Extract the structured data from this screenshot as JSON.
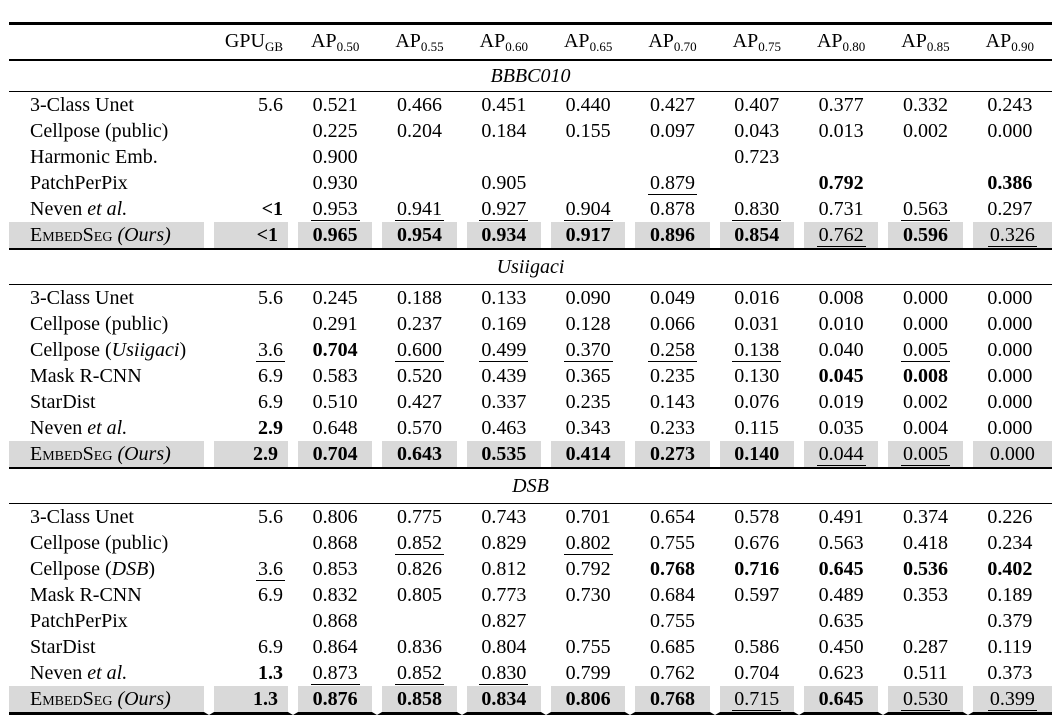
{
  "page": {
    "background_color": "#ffffff",
    "text_color": "#000000",
    "highlight_color": "#d9d9d9"
  },
  "table": {
    "header": {
      "method_label": "",
      "gpu": {
        "base": "GPU",
        "sub": "GB"
      },
      "ap_base": "AP",
      "ap_thresholds": [
        "0.50",
        "0.55",
        "0.60",
        "0.65",
        "0.70",
        "0.75",
        "0.80",
        "0.85",
        "0.90"
      ]
    },
    "sections": [
      {
        "dataset": "BBBC010",
        "rows": [
          {
            "method": [
              {
                "t": "3-Class Unet",
                "s": ""
              }
            ],
            "gpu": "5.6",
            "highlight": false,
            "values": [
              "0.521",
              "0.466",
              "0.451",
              "0.440",
              "0.427",
              "0.407",
              "0.377",
              "0.332",
              "0.243"
            ]
          },
          {
            "method": [
              {
                "t": "Cellpose (public)",
                "s": ""
              }
            ],
            "gpu": "",
            "highlight": false,
            "values": [
              "0.225",
              "0.204",
              "0.184",
              "0.155",
              "0.097",
              "0.043",
              "0.013",
              "0.002",
              "0.000"
            ]
          },
          {
            "method": [
              {
                "t": "Harmonic Emb.",
                "s": ""
              }
            ],
            "gpu": "",
            "highlight": false,
            "values": [
              "0.900",
              "",
              "",
              "",
              "",
              "0.723",
              "",
              "",
              ""
            ]
          },
          {
            "method": [
              {
                "t": "PatchPerPix",
                "s": ""
              }
            ],
            "gpu": "",
            "highlight": false,
            "values": [
              "0.930",
              "",
              "0.905",
              "",
              {
                "t": "0.879",
                "s": "u"
              },
              "",
              {
                "t": "0.792",
                "s": "b"
              },
              "",
              {
                "t": "0.386",
                "s": "b"
              }
            ]
          },
          {
            "method": [
              {
                "t": "Neven ",
                "s": ""
              },
              {
                "t": "et al.",
                "s": "i"
              }
            ],
            "gpu": {
              "t": "<1",
              "s": "b"
            },
            "highlight": false,
            "values": [
              {
                "t": "0.953",
                "s": "u"
              },
              {
                "t": "0.941",
                "s": "u"
              },
              {
                "t": "0.927",
                "s": "u"
              },
              {
                "t": "0.904",
                "s": "u"
              },
              "0.878",
              {
                "t": "0.830",
                "s": "u"
              },
              "0.731",
              {
                "t": "0.563",
                "s": "u"
              },
              "0.297"
            ]
          },
          {
            "method": [
              {
                "t": "EmbedSeg",
                "s": "sc"
              },
              {
                "t": " ",
                "s": ""
              },
              {
                "t": "(Ours)",
                "s": "i"
              }
            ],
            "gpu": {
              "t": "<1",
              "s": "b"
            },
            "highlight": true,
            "values": [
              {
                "t": "0.965",
                "s": "b"
              },
              {
                "t": "0.954",
                "s": "b"
              },
              {
                "t": "0.934",
                "s": "b"
              },
              {
                "t": "0.917",
                "s": "b"
              },
              {
                "t": "0.896",
                "s": "b"
              },
              {
                "t": "0.854",
                "s": "b"
              },
              {
                "t": "0.762",
                "s": "u"
              },
              {
                "t": "0.596",
                "s": "b"
              },
              {
                "t": "0.326",
                "s": "u"
              }
            ]
          }
        ]
      },
      {
        "dataset": "Usiigaci",
        "rows": [
          {
            "method": [
              {
                "t": "3-Class Unet",
                "s": ""
              }
            ],
            "gpu": "5.6",
            "highlight": false,
            "values": [
              "0.245",
              "0.188",
              "0.133",
              "0.090",
              "0.049",
              "0.016",
              "0.008",
              "0.000",
              "0.000"
            ]
          },
          {
            "method": [
              {
                "t": "Cellpose (public)",
                "s": ""
              }
            ],
            "gpu": "",
            "highlight": false,
            "values": [
              "0.291",
              "0.237",
              "0.169",
              "0.128",
              "0.066",
              "0.031",
              "0.010",
              "0.000",
              "0.000"
            ]
          },
          {
            "method": [
              {
                "t": "Cellpose (",
                "s": ""
              },
              {
                "t": "Usiigaci",
                "s": "i"
              },
              {
                "t": ")",
                "s": ""
              }
            ],
            "gpu": {
              "t": "3.6",
              "s": "u"
            },
            "highlight": false,
            "values": [
              {
                "t": "0.704",
                "s": "b"
              },
              {
                "t": "0.600",
                "s": "u"
              },
              {
                "t": "0.499",
                "s": "u"
              },
              {
                "t": "0.370",
                "s": "u"
              },
              {
                "t": "0.258",
                "s": "u"
              },
              {
                "t": "0.138",
                "s": "u"
              },
              "0.040",
              {
                "t": "0.005",
                "s": "u"
              },
              "0.000"
            ]
          },
          {
            "method": [
              {
                "t": "Mask R-CNN",
                "s": ""
              }
            ],
            "gpu": "6.9",
            "highlight": false,
            "values": [
              "0.583",
              "0.520",
              "0.439",
              "0.365",
              "0.235",
              "0.130",
              {
                "t": "0.045",
                "s": "b"
              },
              {
                "t": "0.008",
                "s": "b"
              },
              "0.000"
            ]
          },
          {
            "method": [
              {
                "t": "StarDist",
                "s": ""
              }
            ],
            "gpu": "6.9",
            "highlight": false,
            "values": [
              "0.510",
              "0.427",
              "0.337",
              "0.235",
              "0.143",
              "0.076",
              "0.019",
              "0.002",
              "0.000"
            ]
          },
          {
            "method": [
              {
                "t": "Neven ",
                "s": ""
              },
              {
                "t": "et al.",
                "s": "i"
              }
            ],
            "gpu": {
              "t": "2.9",
              "s": "b"
            },
            "highlight": false,
            "values": [
              "0.648",
              "0.570",
              "0.463",
              "0.343",
              "0.233",
              "0.115",
              "0.035",
              "0.004",
              "0.000"
            ]
          },
          {
            "method": [
              {
                "t": "EmbedSeg",
                "s": "sc"
              },
              {
                "t": " ",
                "s": ""
              },
              {
                "t": "(Ours)",
                "s": "i"
              }
            ],
            "gpu": {
              "t": "2.9",
              "s": "b"
            },
            "highlight": true,
            "values": [
              {
                "t": "0.704",
                "s": "b"
              },
              {
                "t": "0.643",
                "s": "b"
              },
              {
                "t": "0.535",
                "s": "b"
              },
              {
                "t": "0.414",
                "s": "b"
              },
              {
                "t": "0.273",
                "s": "b"
              },
              {
                "t": "0.140",
                "s": "b"
              },
              {
                "t": "0.044",
                "s": "u"
              },
              {
                "t": "0.005",
                "s": "u"
              },
              "0.000"
            ]
          }
        ]
      },
      {
        "dataset": "DSB",
        "rows": [
          {
            "method": [
              {
                "t": "3-Class Unet",
                "s": ""
              }
            ],
            "gpu": "5.6",
            "highlight": false,
            "values": [
              "0.806",
              "0.775",
              "0.743",
              "0.701",
              "0.654",
              "0.578",
              "0.491",
              "0.374",
              "0.226"
            ]
          },
          {
            "method": [
              {
                "t": "Cellpose (public)",
                "s": ""
              }
            ],
            "gpu": "",
            "highlight": false,
            "values": [
              "0.868",
              {
                "t": "0.852",
                "s": "u"
              },
              "0.829",
              {
                "t": "0.802",
                "s": "u"
              },
              "0.755",
              "0.676",
              "0.563",
              "0.418",
              "0.234"
            ]
          },
          {
            "method": [
              {
                "t": "Cellpose (",
                "s": ""
              },
              {
                "t": "DSB",
                "s": "i"
              },
              {
                "t": ")",
                "s": ""
              }
            ],
            "gpu": {
              "t": "3.6",
              "s": "u"
            },
            "highlight": false,
            "values": [
              "0.853",
              "0.826",
              "0.812",
              "0.792",
              {
                "t": "0.768",
                "s": "b"
              },
              {
                "t": "0.716",
                "s": "b"
              },
              {
                "t": "0.645",
                "s": "b"
              },
              {
                "t": "0.536",
                "s": "b"
              },
              {
                "t": "0.402",
                "s": "b"
              }
            ]
          },
          {
            "method": [
              {
                "t": "Mask R-CNN",
                "s": ""
              }
            ],
            "gpu": "6.9",
            "highlight": false,
            "values": [
              "0.832",
              "0.805",
              "0.773",
              "0.730",
              "0.684",
              "0.597",
              "0.489",
              "0.353",
              "0.189"
            ]
          },
          {
            "method": [
              {
                "t": "PatchPerPix",
                "s": ""
              }
            ],
            "gpu": "",
            "highlight": false,
            "values": [
              "0.868",
              "",
              "0.827",
              "",
              "0.755",
              "",
              "0.635",
              "",
              "0.379"
            ]
          },
          {
            "method": [
              {
                "t": "StarDist",
                "s": ""
              }
            ],
            "gpu": "6.9",
            "highlight": false,
            "values": [
              "0.864",
              "0.836",
              "0.804",
              "0.755",
              "0.685",
              "0.586",
              "0.450",
              "0.287",
              "0.119"
            ]
          },
          {
            "method": [
              {
                "t": "Neven ",
                "s": ""
              },
              {
                "t": "et al.",
                "s": "i"
              }
            ],
            "gpu": {
              "t": "1.3",
              "s": "b"
            },
            "highlight": false,
            "values": [
              {
                "t": "0.873",
                "s": "u"
              },
              {
                "t": "0.852",
                "s": "u"
              },
              {
                "t": "0.830",
                "s": "u"
              },
              "0.799",
              "0.762",
              "0.704",
              "0.623",
              "0.511",
              "0.373"
            ]
          },
          {
            "method": [
              {
                "t": "EmbedSeg",
                "s": "sc"
              },
              {
                "t": " ",
                "s": ""
              },
              {
                "t": "(Ours)",
                "s": "i"
              }
            ],
            "gpu": {
              "t": "1.3",
              "s": "b"
            },
            "highlight": true,
            "values": [
              {
                "t": "0.876",
                "s": "b"
              },
              {
                "t": "0.858",
                "s": "b"
              },
              {
                "t": "0.834",
                "s": "b"
              },
              {
                "t": "0.806",
                "s": "b"
              },
              {
                "t": "0.768",
                "s": "b"
              },
              {
                "t": "0.715",
                "s": "u"
              },
              {
                "t": "0.645",
                "s": "b"
              },
              {
                "t": "0.530",
                "s": "u"
              },
              {
                "t": "0.399",
                "s": "u"
              }
            ]
          }
        ]
      }
    ]
  }
}
